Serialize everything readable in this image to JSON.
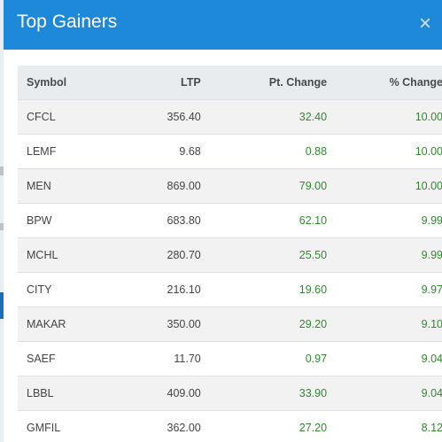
{
  "modal": {
    "title": "Top Gainers",
    "close_icon": "×"
  },
  "table": {
    "headers": {
      "symbol": "Symbol",
      "ltp": "LTP",
      "pt_change": "Pt. Change",
      "pct_change": "% Change"
    },
    "rows": [
      {
        "symbol": "CFCL",
        "ltp": "356.40",
        "pt_change": "32.40",
        "pct_change": "10.00"
      },
      {
        "symbol": "LEMF",
        "ltp": "9.68",
        "pt_change": "0.88",
        "pct_change": "10.00"
      },
      {
        "symbol": "MEN",
        "ltp": "869.00",
        "pt_change": "79.00",
        "pct_change": "10.00"
      },
      {
        "symbol": "BPW",
        "ltp": "683.80",
        "pt_change": "62.10",
        "pct_change": "9.99"
      },
      {
        "symbol": "MCHL",
        "ltp": "280.70",
        "pt_change": "25.50",
        "pct_change": "9.99"
      },
      {
        "symbol": "CITY",
        "ltp": "216.10",
        "pt_change": "19.60",
        "pct_change": "9.97"
      },
      {
        "symbol": "MAKAR",
        "ltp": "350.00",
        "pt_change": "29.20",
        "pct_change": "9.10"
      },
      {
        "symbol": "SAEF",
        "ltp": "11.70",
        "pt_change": "0.97",
        "pct_change": "9.04"
      },
      {
        "symbol": "LBBL",
        "ltp": "409.00",
        "pt_change": "33.90",
        "pct_change": "9.04"
      },
      {
        "symbol": "GMFIL",
        "ltp": "362.00",
        "pt_change": "27.20",
        "pct_change": "8.12"
      }
    ]
  },
  "colors": {
    "header_bg": "#1e88d9",
    "positive": "#2e8b2e"
  }
}
